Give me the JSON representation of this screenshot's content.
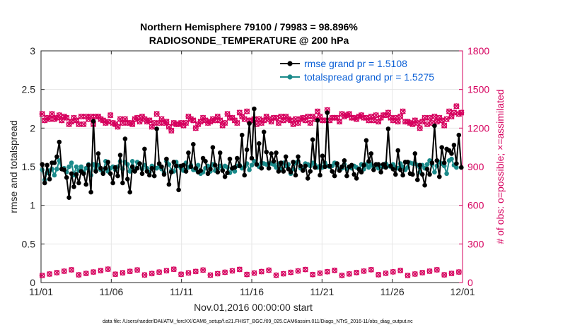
{
  "chart_data": {
    "type": "line",
    "title": "Northern Hemisphere 79100 / 79983 = 98.896%",
    "subtitle": "RADIOSONDE_TEMPERATURE @ 200 hPa",
    "xlabel": "Nov.01,2016 00:00:00 start",
    "ylabel": "rmse and totalspread",
    "ylabel_right": "# of obs: o=possible; ×=assimilated",
    "footer": "data file: /Users/raeder/DAI/ATM_forcXX/CAM6_setup/f.e21.FHIST_BGC.f09_025.CAM6assim.011/Diags_NTrS_2016-11/obs_diag_output.nc",
    "x_range": [
      0,
      30
    ],
    "ylim": [
      0,
      3
    ],
    "ylim_right": [
      0,
      1800
    ],
    "x_ticks": [
      0,
      5,
      10,
      15,
      20,
      25,
      30
    ],
    "x_tick_labels": [
      "11/01",
      "11/06",
      "11/11",
      "11/16",
      "11/21",
      "11/26",
      "12/01"
    ],
    "y_ticks": [
      0,
      0.5,
      1,
      1.5,
      2,
      2.5,
      3
    ],
    "y_tick_labels": [
      "0",
      "0.5",
      "1",
      "1.5",
      "2",
      "2.5",
      "3"
    ],
    "y_ticks_right": [
      0,
      300,
      600,
      900,
      1200,
      1500,
      1800
    ],
    "y_tick_labels_right": [
      "0",
      "300",
      "600",
      "900",
      "1200",
      "1500",
      "1800"
    ],
    "series": [
      {
        "name": "rmse grand pr = 1.5108",
        "color": "#000000",
        "values": [
          1.53,
          1.29,
          1.52,
          1.34,
          1.55,
          1.55,
          1.63,
          1.82,
          1.47,
          1.46,
          1.36,
          1.1,
          1.41,
          1.24,
          1.4,
          1.29,
          1.44,
          1.41,
          1.27,
          1.52,
          1.17,
          2.09,
          1.44,
          1.67,
          1.48,
          1.41,
          1.48,
          1.56,
          1.41,
          1.29,
          1.49,
          1.38,
          1.65,
          1.29,
          1.86,
          1.34,
          1.17,
          1.5,
          1.44,
          1.48,
          1.54,
          1.41,
          1.73,
          1.44,
          1.39,
          1.48,
          1.38,
          1.99,
          1.54,
          1.5,
          1.4,
          1.6,
          1.27,
          1.43,
          1.56,
          1.51,
          1.2,
          1.51,
          1.52,
          1.44,
          1.68,
          1.5,
          1.79,
          1.48,
          1.43,
          1.45,
          1.61,
          1.57,
          1.41,
          1.47,
          1.75,
          1.52,
          1.43,
          1.68,
          1.45,
          1.37,
          1.42,
          1.6,
          1.48,
          1.49,
          1.61,
          1.51,
          1.91,
          1.39,
          1.72,
          2.06,
          1.61,
          2.25,
          1.53,
          1.8,
          1.48,
          1.95,
          1.69,
          1.48,
          1.67,
          1.57,
          1.68,
          1.44,
          1.55,
          1.44,
          1.63,
          1.47,
          1.43,
          1.56,
          1.39,
          1.63,
          1.51,
          1.45,
          1.51,
          1.35,
          1.44,
          1.85,
          1.49,
          2.1,
          1.39,
          1.64,
          1.5,
          2.2,
          1.51,
          1.44,
          1.38,
          1.54,
          1.45,
          1.5,
          1.58,
          1.38,
          1.5,
          1.52,
          1.4,
          1.35,
          1.47,
          1.43,
          1.52,
          1.84,
          1.57,
          1.67,
          1.46,
          1.53,
          1.53,
          1.43,
          1.53,
          1.49,
          1.99,
          1.51,
          1.47,
          1.4,
          1.71,
          1.46,
          1.39,
          1.56,
          1.56,
          1.41,
          1.4,
          1.67,
          1.33,
          1.52,
          1.4,
          1.26,
          1.47,
          1.4,
          1.55,
          2.03,
          1.58,
          1.37,
          1.75,
          1.55,
          1.73,
          1.71,
          1.67,
          1.78,
          1.54,
          1.91,
          1.49
        ]
      },
      {
        "name": "totalspread grand pr = 1.5275",
        "color": "#1a8a8a",
        "values": [
          1.46,
          1.33,
          1.42,
          1.45,
          1.47,
          1.39,
          1.47,
          1.58,
          1.47,
          1.48,
          1.43,
          1.5,
          1.55,
          1.39,
          1.5,
          1.45,
          1.5,
          1.43,
          1.48,
          1.53,
          1.39,
          1.53,
          1.46,
          1.52,
          1.46,
          1.43,
          1.57,
          1.44,
          1.48,
          1.5,
          1.46,
          1.5,
          1.57,
          1.47,
          1.56,
          1.53,
          1.44,
          1.57,
          1.45,
          1.56,
          1.54,
          1.47,
          1.52,
          1.48,
          1.43,
          1.51,
          1.49,
          1.48,
          1.5,
          1.47,
          1.42,
          1.57,
          1.53,
          1.45,
          1.44,
          1.56,
          1.51,
          1.48,
          1.45,
          1.55,
          1.49,
          1.52,
          1.46,
          1.46,
          1.52,
          1.41,
          1.43,
          1.48,
          1.51,
          1.44,
          1.53,
          1.45,
          1.47,
          1.51,
          1.46,
          1.51,
          1.49,
          1.42,
          1.47,
          1.44,
          1.51,
          1.52,
          1.48,
          1.5,
          1.54,
          1.46,
          1.52,
          1.57,
          1.53,
          1.5,
          1.55,
          1.54,
          1.53,
          1.54,
          1.54,
          1.53,
          1.49,
          1.54,
          1.47,
          1.55,
          1.51,
          1.53,
          1.41,
          1.47,
          1.55,
          1.57,
          1.48,
          1.47,
          1.54,
          1.53,
          1.51,
          1.55,
          1.52,
          1.49,
          1.51,
          1.49,
          1.55,
          1.51,
          1.5,
          1.51,
          1.55,
          1.52,
          1.47,
          1.48,
          1.53,
          1.47,
          1.5,
          1.48,
          1.51,
          1.49,
          1.47,
          1.53,
          1.47,
          1.53,
          1.49,
          1.53,
          1.5,
          1.52,
          1.48,
          1.51,
          1.5,
          1.54,
          1.51,
          1.5,
          1.53,
          1.49,
          1.48,
          1.54,
          1.5,
          1.46,
          1.49,
          1.55,
          1.54,
          1.54,
          1.52,
          1.43,
          1.52,
          1.48,
          1.53,
          1.58,
          1.53,
          1.43,
          1.51,
          1.56,
          1.54,
          1.51,
          1.41,
          1.58,
          1.6,
          1.52,
          1.49
        ]
      }
    ],
    "obs_possible": [
      1310,
      1260,
      1280,
      1270,
      1310,
      1270,
      1280,
      1300,
      1260,
      1290,
      1280,
      1230,
      1250,
      1280,
      1260,
      1230,
      1290,
      1230,
      1290,
      1270,
      1290,
      1230,
      1290,
      1290,
      1270,
      1260,
      1240,
      1250,
      1300,
      1240,
      1230,
      1210,
      1270,
      1240,
      1270,
      1240,
      1240,
      1230,
      1270,
      1280,
      1250,
      1290,
      1270,
      1250,
      1260,
      1210,
      1240,
      1310,
      1240,
      1270,
      1240,
      1250,
      1210,
      1180,
      1240,
      1230,
      1230,
      1240,
      1220,
      1240,
      1290,
      1270,
      1260,
      1200,
      1230,
      1250,
      1280,
      1260,
      1240,
      1250,
      1270,
      1260,
      1290,
      1260,
      1220,
      1240,
      1310,
      1280,
      1280,
      1260,
      1240,
      1320,
      1290,
      1270,
      1330,
      1260,
      1260,
      1270,
      1230,
      1270,
      1240,
      1260,
      1290,
      1270,
      1250,
      1280,
      1280,
      1240,
      1290,
      1260,
      1290,
      1270,
      1260,
      1230,
      1270,
      1240,
      1270,
      1280,
      1260,
      1290,
      1240,
      1290,
      1270,
      1330,
      1290,
      1260,
      1260,
      1340,
      1260,
      1280,
      1280,
      1280,
      1250,
      1310,
      1290,
      1300,
      1310,
      1280,
      1280,
      1270,
      1290,
      1300,
      1280,
      1280,
      1260,
      1290,
      1260,
      1300,
      1250,
      1280,
      1300,
      1300,
      1320,
      1280,
      1260,
      1280,
      1250,
      1290,
      1330,
      1250,
      1250,
      1240,
      1230,
      1260,
      1240,
      1200,
      1250,
      1280,
      1230,
      1280,
      1240,
      1290,
      1250,
      1280,
      1260,
      1220,
      1270,
      1330,
      1290,
      1320,
      1370,
      1310,
      1320
    ]
  }
}
